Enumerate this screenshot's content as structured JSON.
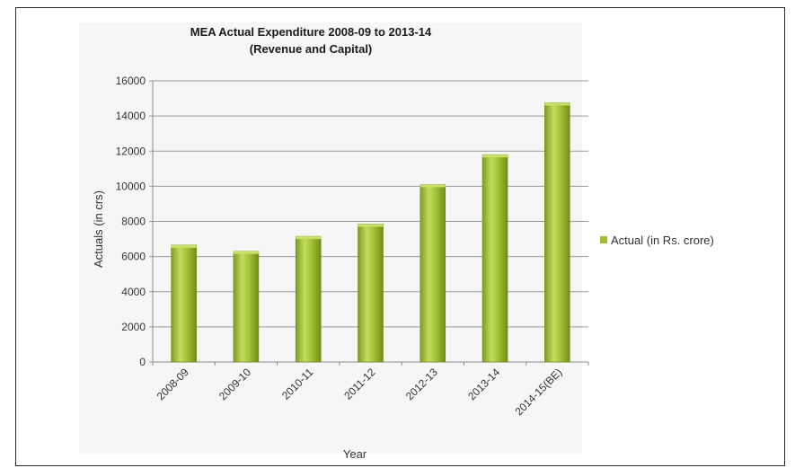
{
  "chart_data": {
    "type": "bar",
    "title": [
      "MEA Actual Expenditure 2008-09 to 2013-14",
      "(Revenue and Capital)"
    ],
    "xlabel": "Year",
    "ylabel": "Actuals (in crs)",
    "categories": [
      "2008-09",
      "2009-10",
      "2010-11",
      "2011-12",
      "2012-13",
      "2013-14",
      "2014-15(BE)"
    ],
    "series": [
      {
        "name": "Actual (in Rs. crore)",
        "values": [
          6650,
          6300,
          7150,
          7850,
          10100,
          11800,
          14750
        ]
      }
    ],
    "ylim": [
      0,
      16000
    ],
    "yticks": [
      0,
      2000,
      4000,
      6000,
      8000,
      10000,
      12000,
      14000,
      16000
    ],
    "grid": true,
    "legend": "right",
    "colors": {
      "bar": "#9fbf2f",
      "bar_light": "#c9e06a",
      "bar_dark": "#6f8f1a",
      "grid": "#9a9a9a"
    }
  }
}
